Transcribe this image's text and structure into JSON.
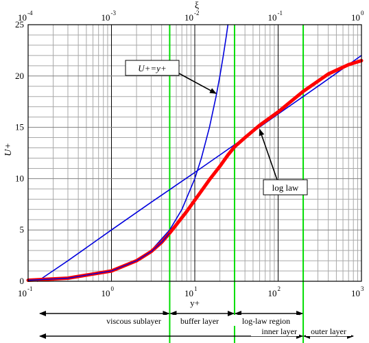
{
  "chart_data": {
    "type": "line",
    "x_scale": "log",
    "xlim": [
      0.1,
      1000
    ],
    "ylim": [
      0,
      25
    ],
    "grid": true,
    "ylabel": "U+",
    "xlabel": "y+",
    "top_axis_label": "ξ",
    "y_ticks": [
      0,
      5,
      10,
      15,
      20,
      25
    ],
    "x_ticks": [
      {
        "base": "10",
        "exp": "-1",
        "value": 0.1
      },
      {
        "base": "10",
        "exp": "0",
        "value": 1
      },
      {
        "base": "10",
        "exp": "1",
        "value": 10
      },
      {
        "base": "10",
        "exp": "2",
        "value": 100
      },
      {
        "base": "10",
        "exp": "3",
        "value": 1000
      }
    ],
    "top_ticks": [
      {
        "base": "10",
        "exp": "-4"
      },
      {
        "base": "10",
        "exp": "-3"
      },
      {
        "base": "10",
        "exp": "-2"
      },
      {
        "base": "10",
        "exp": "-1"
      },
      {
        "base": "10",
        "exp": "0"
      }
    ],
    "region_boundaries_yplus": [
      5,
      30,
      200
    ],
    "series": [
      {
        "id": "linear_law",
        "color": "#0000dd",
        "width": 1.6,
        "points": [
          [
            0.1,
            0.1
          ],
          [
            0.2,
            0.2
          ],
          [
            0.5,
            0.5
          ],
          [
            1,
            1
          ],
          [
            2,
            2
          ],
          [
            3,
            3
          ],
          [
            5,
            5
          ],
          [
            7,
            7
          ],
          [
            10,
            10
          ],
          [
            12,
            12
          ],
          [
            15,
            15
          ],
          [
            18,
            18
          ],
          [
            20,
            20
          ],
          [
            22,
            22
          ],
          [
            24,
            24
          ],
          [
            25,
            25
          ]
        ]
      },
      {
        "id": "log_law",
        "color": "#0000dd",
        "width": 1.6,
        "points": [
          [
            0.13,
            0
          ],
          [
            0.3,
            2.0
          ],
          [
            1,
            5.0
          ],
          [
            3,
            7.7
          ],
          [
            10,
            10.6
          ],
          [
            30,
            13.3
          ],
          [
            100,
            16.3
          ],
          [
            300,
            19.0
          ],
          [
            1000,
            22.0
          ]
        ]
      },
      {
        "id": "u_profile",
        "color": "#ff0000",
        "width": 5,
        "points": [
          [
            0.1,
            0.1
          ],
          [
            0.3,
            0.3
          ],
          [
            1,
            1.0
          ],
          [
            2,
            2.0
          ],
          [
            3,
            2.9
          ],
          [
            4,
            3.8
          ],
          [
            5,
            4.7
          ],
          [
            6,
            5.5
          ],
          [
            8,
            6.8
          ],
          [
            10,
            7.9
          ],
          [
            12,
            8.8
          ],
          [
            15,
            9.9
          ],
          [
            20,
            11.2
          ],
          [
            25,
            12.3
          ],
          [
            30,
            13.1
          ],
          [
            40,
            14.0
          ],
          [
            60,
            15.2
          ],
          [
            100,
            16.5
          ],
          [
            200,
            18.5
          ],
          [
            400,
            20.2
          ],
          [
            700,
            21.1
          ],
          [
            1000,
            21.5
          ]
        ]
      }
    ],
    "annotations": [
      {
        "id": "linear",
        "text": "U+=y+",
        "arrow_to": [
          18,
          18.3
        ]
      },
      {
        "id": "loglaw",
        "text": "log law",
        "arrow_to": [
          60,
          14.8
        ]
      }
    ],
    "regions": [
      {
        "label": "viscous sublayer",
        "from": 0.1,
        "to": 5
      },
      {
        "label": "buffer layer",
        "from": 5,
        "to": 30
      },
      {
        "label": "log-law region",
        "from": 30,
        "to": 200
      },
      {
        "label": "inner layer",
        "from": 0.1,
        "to": 200
      },
      {
        "label": "outer layer",
        "from": 200,
        "to": 1000
      }
    ]
  },
  "colors": {
    "boundary_lines": "#00dd00",
    "grid_minor": "#a8a8a8",
    "grid_major": "#000000"
  }
}
